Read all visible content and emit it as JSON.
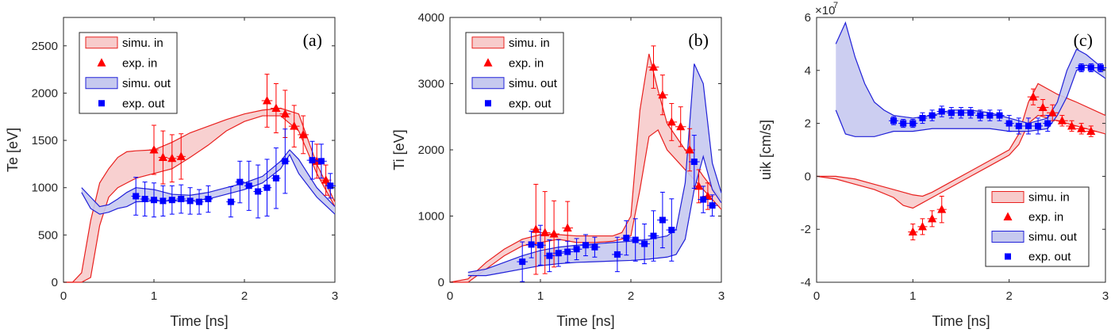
{
  "chart_data": [
    {
      "type": "line",
      "panel_label": "(a)",
      "xlabel": "Time [ns]",
      "ylabel": "Te [eV]",
      "xlim": [
        0,
        3
      ],
      "ylim": [
        0,
        2800
      ],
      "xticks": [
        0,
        1,
        2,
        3
      ],
      "yticks": [
        0,
        500,
        1000,
        1500,
        2000,
        2500
      ],
      "legend_position": "top-left",
      "legend": [
        "simu. in",
        "exp. in",
        "simu. out",
        "exp. out"
      ],
      "series": [
        {
          "name": "simu. in",
          "kind": "band",
          "color": "#e8201e",
          "fill": "#f7cbcb",
          "x": [
            0,
            0.1,
            0.2,
            0.3,
            0.4,
            0.5,
            0.6,
            0.7,
            0.8,
            1.0,
            1.2,
            1.4,
            1.6,
            1.8,
            2.0,
            2.2,
            2.4,
            2.6,
            2.8,
            3.0
          ],
          "upper": [
            0,
            0,
            100,
            650,
            1050,
            1200,
            1320,
            1380,
            1390,
            1400,
            1480,
            1580,
            1650,
            1720,
            1780,
            1820,
            1840,
            1780,
            1250,
            850
          ],
          "lower": [
            0,
            0,
            0,
            50,
            600,
            900,
            1000,
            1050,
            1100,
            1150,
            1200,
            1320,
            1450,
            1600,
            1700,
            1760,
            1760,
            1600,
            1150,
            800
          ]
        },
        {
          "name": "exp. in",
          "kind": "points",
          "color": "#ff0000",
          "marker": "triangle",
          "x": [
            1.0,
            1.1,
            1.2,
            1.3,
            2.25,
            2.35,
            2.45,
            2.55,
            2.65,
            2.8,
            2.9
          ],
          "y": [
            1400,
            1320,
            1310,
            1330,
            1920,
            1840,
            1780,
            1650,
            1560,
            1280,
            1080
          ],
          "yerr": [
            260,
            280,
            250,
            240,
            280,
            260,
            250,
            220,
            200,
            180,
            160
          ],
          "xerr": [
            0.05,
            0.05,
            0.05,
            0.05,
            0.06,
            0.06,
            0.06,
            0.06,
            0.06,
            0.06,
            0.06
          ]
        },
        {
          "name": "simu. out",
          "kind": "band",
          "color": "#2020d8",
          "fill": "#c6c9ef",
          "x": [
            0.2,
            0.3,
            0.4,
            0.5,
            0.6,
            0.7,
            0.8,
            1.0,
            1.2,
            1.4,
            1.6,
            1.8,
            2.0,
            2.2,
            2.4,
            2.5,
            2.6,
            2.8,
            3.0
          ],
          "upper": [
            1000,
            900,
            800,
            820,
            880,
            950,
            1000,
            980,
            930,
            920,
            950,
            1000,
            1050,
            1120,
            1280,
            1400,
            1300,
            1000,
            800
          ],
          "lower": [
            950,
            780,
            720,
            740,
            780,
            800,
            850,
            860,
            860,
            860,
            880,
            930,
            980,
            1050,
            1200,
            1350,
            1150,
            900,
            720
          ]
        },
        {
          "name": "exp. out",
          "kind": "points",
          "color": "#0000ff",
          "marker": "square",
          "x": [
            0.8,
            0.9,
            1.0,
            1.1,
            1.2,
            1.3,
            1.4,
            1.5,
            1.6,
            1.85,
            1.95,
            2.05,
            2.15,
            2.25,
            2.35,
            2.45,
            2.75,
            2.85,
            2.95
          ],
          "y": [
            910,
            880,
            870,
            860,
            870,
            880,
            860,
            850,
            880,
            850,
            1060,
            1020,
            960,
            1000,
            1100,
            1280,
            1290,
            1280,
            1020
          ],
          "yerr": [
            200,
            180,
            180,
            160,
            150,
            150,
            140,
            130,
            140,
            160,
            220,
            260,
            280,
            300,
            320,
            340,
            200,
            180,
            130
          ],
          "xerr": [
            0.05,
            0.05,
            0.05,
            0.05,
            0.05,
            0.05,
            0.05,
            0.05,
            0.05,
            0.05,
            0.05,
            0.05,
            0.05,
            0.05,
            0.05,
            0.05,
            0.06,
            0.06,
            0.06
          ]
        }
      ]
    },
    {
      "type": "line",
      "panel_label": "(b)",
      "xlabel": "Time [ns]",
      "ylabel": "Ti [eV]",
      "xlim": [
        0,
        3
      ],
      "ylim": [
        0,
        4000
      ],
      "xticks": [
        0,
        1,
        2,
        3
      ],
      "yticks": [
        0,
        1000,
        2000,
        3000,
        4000
      ],
      "legend_position": "top-left",
      "legend": [
        "simu. in",
        "exp. in",
        "simu. out",
        "exp. out"
      ],
      "series": [
        {
          "name": "simu. in",
          "kind": "band",
          "color": "#e8201e",
          "fill": "#f7cbcb",
          "x": [
            0,
            0.2,
            0.4,
            0.6,
            0.8,
            1.0,
            1.2,
            1.4,
            1.6,
            1.8,
            1.9,
            2.0,
            2.1,
            2.2,
            2.3,
            2.4,
            2.6,
            2.8,
            3.0
          ],
          "upper": [
            0,
            50,
            300,
            500,
            650,
            720,
            720,
            700,
            700,
            700,
            750,
            1000,
            2600,
            3450,
            2900,
            2400,
            2000,
            1600,
            1250
          ],
          "lower": [
            0,
            0,
            200,
            400,
            550,
            600,
            650,
            600,
            600,
            620,
            650,
            700,
            1400,
            2200,
            2300,
            2000,
            1700,
            1400,
            1100
          ]
        },
        {
          "name": "exp. in",
          "kind": "points",
          "color": "#ff0000",
          "marker": "triangle",
          "x": [
            0.95,
            1.05,
            1.15,
            1.3,
            2.25,
            2.35,
            2.45,
            2.55,
            2.65,
            2.75,
            2.85
          ],
          "y": [
            800,
            750,
            730,
            820,
            3250,
            2830,
            2420,
            2350,
            2000,
            1450,
            1300
          ],
          "yerr": [
            680,
            620,
            500,
            400,
            320,
            300,
            280,
            300,
            320,
            250,
            200
          ],
          "xerr": [
            0.06,
            0.06,
            0.06,
            0.06,
            0.06,
            0.06,
            0.06,
            0.06,
            0.06,
            0.06,
            0.06
          ]
        },
        {
          "name": "simu. out",
          "kind": "band",
          "color": "#2020d8",
          "fill": "#c6c9ef",
          "x": [
            0.2,
            0.4,
            0.6,
            0.8,
            1.0,
            1.2,
            1.4,
            1.6,
            1.8,
            2.0,
            2.2,
            2.4,
            2.5,
            2.6,
            2.7,
            2.8,
            2.9,
            3.0
          ],
          "upper": [
            150,
            200,
            300,
            400,
            480,
            530,
            560,
            580,
            600,
            620,
            650,
            700,
            800,
            1500,
            3300,
            3000,
            1800,
            1350
          ],
          "lower": [
            100,
            100,
            150,
            200,
            250,
            280,
            300,
            310,
            320,
            330,
            350,
            380,
            420,
            650,
            1400,
            1900,
            1400,
            1200
          ]
        },
        {
          "name": "exp. out",
          "kind": "points",
          "color": "#0000ff",
          "marker": "square",
          "x": [
            0.8,
            0.9,
            1.0,
            1.1,
            1.2,
            1.3,
            1.4,
            1.5,
            1.6,
            1.85,
            1.95,
            2.05,
            2.15,
            2.25,
            2.35,
            2.45,
            2.7,
            2.8,
            2.9
          ],
          "y": [
            310,
            570,
            560,
            400,
            440,
            460,
            500,
            560,
            530,
            420,
            670,
            640,
            580,
            700,
            940,
            790,
            1820,
            1250,
            1160
          ],
          "yerr": [
            300,
            200,
            300,
            240,
            200,
            160,
            160,
            160,
            150,
            260,
            260,
            320,
            300,
            380,
            420,
            470,
            400,
            200,
            160
          ],
          "xerr": [
            0.06,
            0.06,
            0.06,
            0.06,
            0.06,
            0.06,
            0.06,
            0.06,
            0.06,
            0.06,
            0.06,
            0.06,
            0.06,
            0.06,
            0.06,
            0.06,
            0.06,
            0.06,
            0.06
          ]
        }
      ]
    },
    {
      "type": "line",
      "panel_label": "(c)",
      "xlabel": "Time [ns]",
      "ylabel": "uik [cm/s]",
      "y_exponent_label": "×10",
      "y_exponent_power": "7",
      "xlim": [
        0,
        3
      ],
      "ylim": [
        -4,
        6
      ],
      "xticks": [
        0,
        1,
        2,
        3
      ],
      "yticks": [
        -4,
        -2,
        0,
        2,
        4,
        6
      ],
      "legend_position": "bottom-right",
      "legend": [
        "simu. in",
        "exp. in",
        "simu. out",
        "exp. out"
      ],
      "series": [
        {
          "name": "simu. in",
          "kind": "band",
          "color": "#e8201e",
          "fill": "#f7cbcb",
          "x": [
            0,
            0.2,
            0.4,
            0.6,
            0.8,
            0.9,
            1.0,
            1.1,
            1.2,
            1.4,
            1.6,
            1.8,
            2.0,
            2.1,
            2.2,
            2.3,
            2.5,
            2.7,
            3.0
          ],
          "upper": [
            0,
            0,
            -0.1,
            -0.3,
            -0.5,
            -0.6,
            -0.7,
            -0.75,
            -0.6,
            -0.2,
            0.2,
            0.6,
            1.0,
            1.6,
            2.8,
            3.5,
            3.1,
            2.8,
            2.3
          ],
          "lower": [
            0,
            -0.1,
            -0.3,
            -0.5,
            -0.8,
            -1.1,
            -1.2,
            -1.0,
            -0.8,
            -0.4,
            0,
            0.4,
            0.8,
            1.2,
            2.0,
            2.3,
            2.1,
            1.9,
            1.6
          ]
        },
        {
          "name": "exp. in",
          "kind": "points",
          "color": "#ff0000",
          "marker": "triangle",
          "x": [
            1.0,
            1.1,
            1.2,
            1.3,
            2.25,
            2.35,
            2.45,
            2.55,
            2.65,
            2.75,
            2.85
          ],
          "y": [
            -2.1,
            -1.9,
            -1.6,
            -1.25,
            3.0,
            2.6,
            2.4,
            2.1,
            1.9,
            1.8,
            1.7
          ],
          "yerr": [
            0.3,
            0.3,
            0.3,
            0.5,
            0.3,
            0.3,
            0.3,
            0.2,
            0.2,
            0.2,
            0.2
          ],
          "xerr": [
            0.05,
            0.05,
            0.05,
            0.05,
            0.06,
            0.06,
            0.06,
            0.06,
            0.06,
            0.06,
            0.06
          ]
        },
        {
          "name": "simu. out",
          "kind": "band",
          "color": "#2020d8",
          "fill": "#c6c9ef",
          "x": [
            0.2,
            0.3,
            0.4,
            0.5,
            0.6,
            0.7,
            0.8,
            1.0,
            1.2,
            1.4,
            1.6,
            1.8,
            2.0,
            2.2,
            2.4,
            2.5,
            2.6,
            2.7,
            2.8,
            3.0
          ],
          "upper": [
            5.0,
            5.8,
            4.5,
            3.5,
            2.8,
            2.5,
            2.3,
            2.2,
            2.3,
            2.5,
            2.5,
            2.4,
            2.2,
            2.0,
            2.2,
            2.8,
            4.0,
            4.8,
            4.6,
            4.0
          ],
          "lower": [
            2.5,
            1.6,
            1.5,
            1.5,
            1.5,
            1.6,
            1.7,
            1.7,
            1.8,
            1.8,
            1.8,
            1.8,
            1.7,
            1.7,
            1.8,
            2.3,
            3.0,
            4.0,
            4.2,
            3.7
          ]
        },
        {
          "name": "exp. out",
          "kind": "points",
          "color": "#0000ff",
          "marker": "square",
          "x": [
            0.8,
            0.9,
            1.0,
            1.1,
            1.2,
            1.3,
            1.4,
            1.5,
            1.6,
            1.7,
            1.8,
            1.9,
            2.0,
            2.1,
            2.2,
            2.3,
            2.4,
            2.75,
            2.85,
            2.95
          ],
          "y": [
            2.1,
            2.0,
            2.0,
            2.2,
            2.3,
            2.45,
            2.4,
            2.4,
            2.4,
            2.3,
            2.3,
            2.3,
            2.0,
            1.9,
            1.9,
            1.9,
            2.0,
            4.1,
            4.1,
            4.1
          ],
          "yerr": [
            0.15,
            0.15,
            0.15,
            0.2,
            0.2,
            0.2,
            0.2,
            0.2,
            0.2,
            0.2,
            0.2,
            0.2,
            0.3,
            0.3,
            0.3,
            0.3,
            0.3,
            0.15,
            0.15,
            0.15
          ],
          "xerr": [
            0.05,
            0.05,
            0.05,
            0.05,
            0.05,
            0.05,
            0.05,
            0.05,
            0.05,
            0.05,
            0.05,
            0.05,
            0.05,
            0.05,
            0.05,
            0.05,
            0.05,
            0.06,
            0.06,
            0.06
          ]
        }
      ]
    }
  ]
}
